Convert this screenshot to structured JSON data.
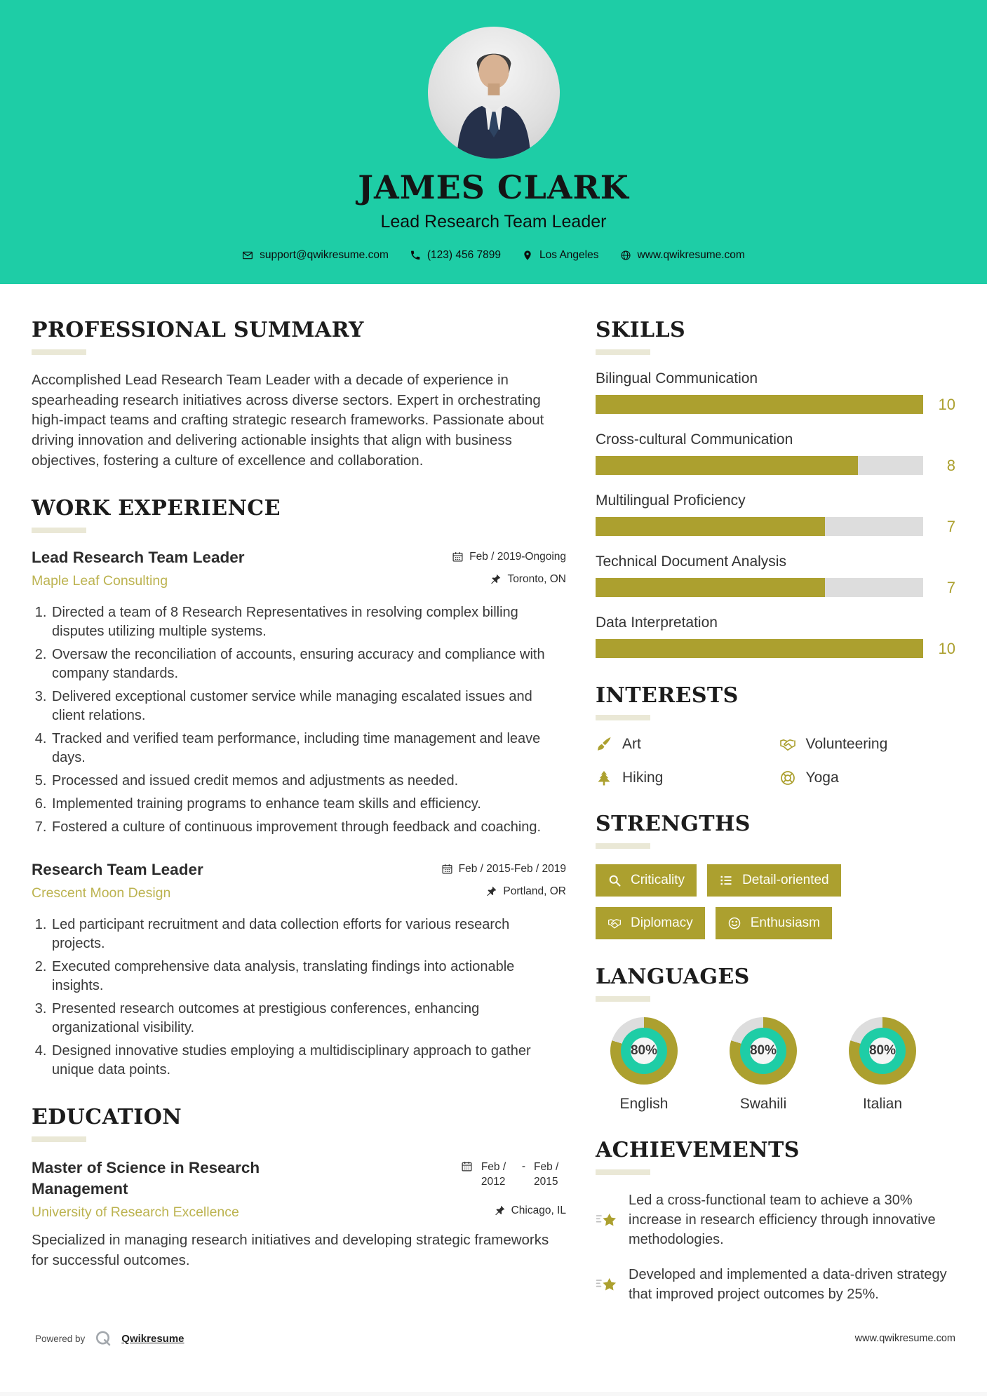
{
  "theme": {
    "teal": "#1ecda6",
    "olive": "#aca02f",
    "olive_light": "#bcb350",
    "track_gray": "#dddddd",
    "underline": "#eae8d6"
  },
  "header": {
    "name": "JAMES CLARK",
    "title": "Lead Research Team Leader",
    "contact": [
      {
        "icon": "email-icon",
        "text": "support@qwikresume.com"
      },
      {
        "icon": "phone-icon",
        "text": "(123) 456 7899"
      },
      {
        "icon": "location-pin-icon",
        "text": "Los Angeles"
      },
      {
        "icon": "globe-icon",
        "text": "www.qwikresume.com"
      }
    ]
  },
  "summary": {
    "heading": "PROFESSIONAL SUMMARY",
    "text": "Accomplished Lead Research Team Leader with a decade of experience in spearheading research initiatives across diverse sectors. Expert in orchestrating high-impact teams and crafting strategic research frameworks. Passionate about driving innovation and delivering actionable insights that align with business objectives, fostering a culture of excellence and collaboration."
  },
  "work_experience": {
    "heading": "WORK EXPERIENCE",
    "jobs": [
      {
        "title": "Lead Research Team Leader",
        "company": "Maple Leaf Consulting",
        "dates": "Feb / 2019-Ongoing",
        "location": "Toronto, ON",
        "items": [
          "Directed a team of 8 Research Representatives in resolving complex billing disputes utilizing multiple systems.",
          "Oversaw the reconciliation of accounts, ensuring accuracy and compliance with company standards.",
          "Delivered exceptional customer service while managing escalated issues and client relations.",
          "Tracked and verified team performance, including time management and leave days.",
          "Processed and issued credit memos and adjustments as needed.",
          "Implemented training programs to enhance team skills and efficiency.",
          "Fostered a culture of continuous improvement through feedback and coaching."
        ]
      },
      {
        "title": "Research Team Leader",
        "company": "Crescent Moon Design",
        "dates": "Feb / 2015-Feb / 2019",
        "location": "Portland, OR",
        "items": [
          "Led participant recruitment and data collection efforts for various research projects.",
          "Executed comprehensive data analysis, translating findings into actionable insights.",
          "Presented research outcomes at prestigious conferences, enhancing organizational visibility.",
          "Designed innovative studies employing a multidisciplinary approach to gather unique data points."
        ]
      }
    ]
  },
  "education": {
    "heading": "EDUCATION",
    "degree": "Master of Science in Research Management",
    "school": "University of Research Excellence",
    "date_start": "Feb / 2012",
    "date_separator": "-",
    "date_end": "Feb / 2015",
    "location": "Chicago, IL",
    "description": "Specialized in managing research initiatives and developing strategic frameworks for successful outcomes."
  },
  "skills": {
    "heading": "SKILLS",
    "max": 10,
    "items": [
      {
        "name": "Bilingual Communication",
        "value": 10
      },
      {
        "name": "Cross-cultural Communication",
        "value": 8
      },
      {
        "name": "Multilingual Proficiency",
        "value": 7
      },
      {
        "name": "Technical Document Analysis",
        "value": 7
      },
      {
        "name": "Data Interpretation",
        "value": 10
      }
    ]
  },
  "interests": {
    "heading": "INTERESTS",
    "items": [
      {
        "icon": "paintbrush-icon",
        "label": "Art"
      },
      {
        "icon": "handshake-icon",
        "label": "Volunteering"
      },
      {
        "icon": "tree-icon",
        "label": "Hiking"
      },
      {
        "icon": "lifebuoy-icon",
        "label": "Yoga"
      }
    ]
  },
  "strengths": {
    "heading": "STRENGTHS",
    "items": [
      {
        "icon": "search-icon",
        "label": "Criticality"
      },
      {
        "icon": "list-icon",
        "label": "Detail-oriented"
      },
      {
        "icon": "handshake-icon",
        "label": "Diplomacy"
      },
      {
        "icon": "smiley-icon",
        "label": "Enthusiasm"
      }
    ]
  },
  "languages": {
    "heading": "LANGUAGES",
    "items": [
      {
        "name": "English",
        "percent": 80
      },
      {
        "name": "Swahili",
        "percent": 80
      },
      {
        "name": "Italian",
        "percent": 80
      }
    ]
  },
  "achievements": {
    "heading": "ACHIEVEMENTS",
    "items": [
      "Led a cross-functional team to achieve a 30% increase in research efficiency through innovative methodologies.",
      "Developed and implemented a data-driven strategy that improved project outcomes by 25%."
    ]
  },
  "footer": {
    "powered_by": "Powered by",
    "brand": "Qwikresume",
    "website": "www.qwikresume.com"
  }
}
